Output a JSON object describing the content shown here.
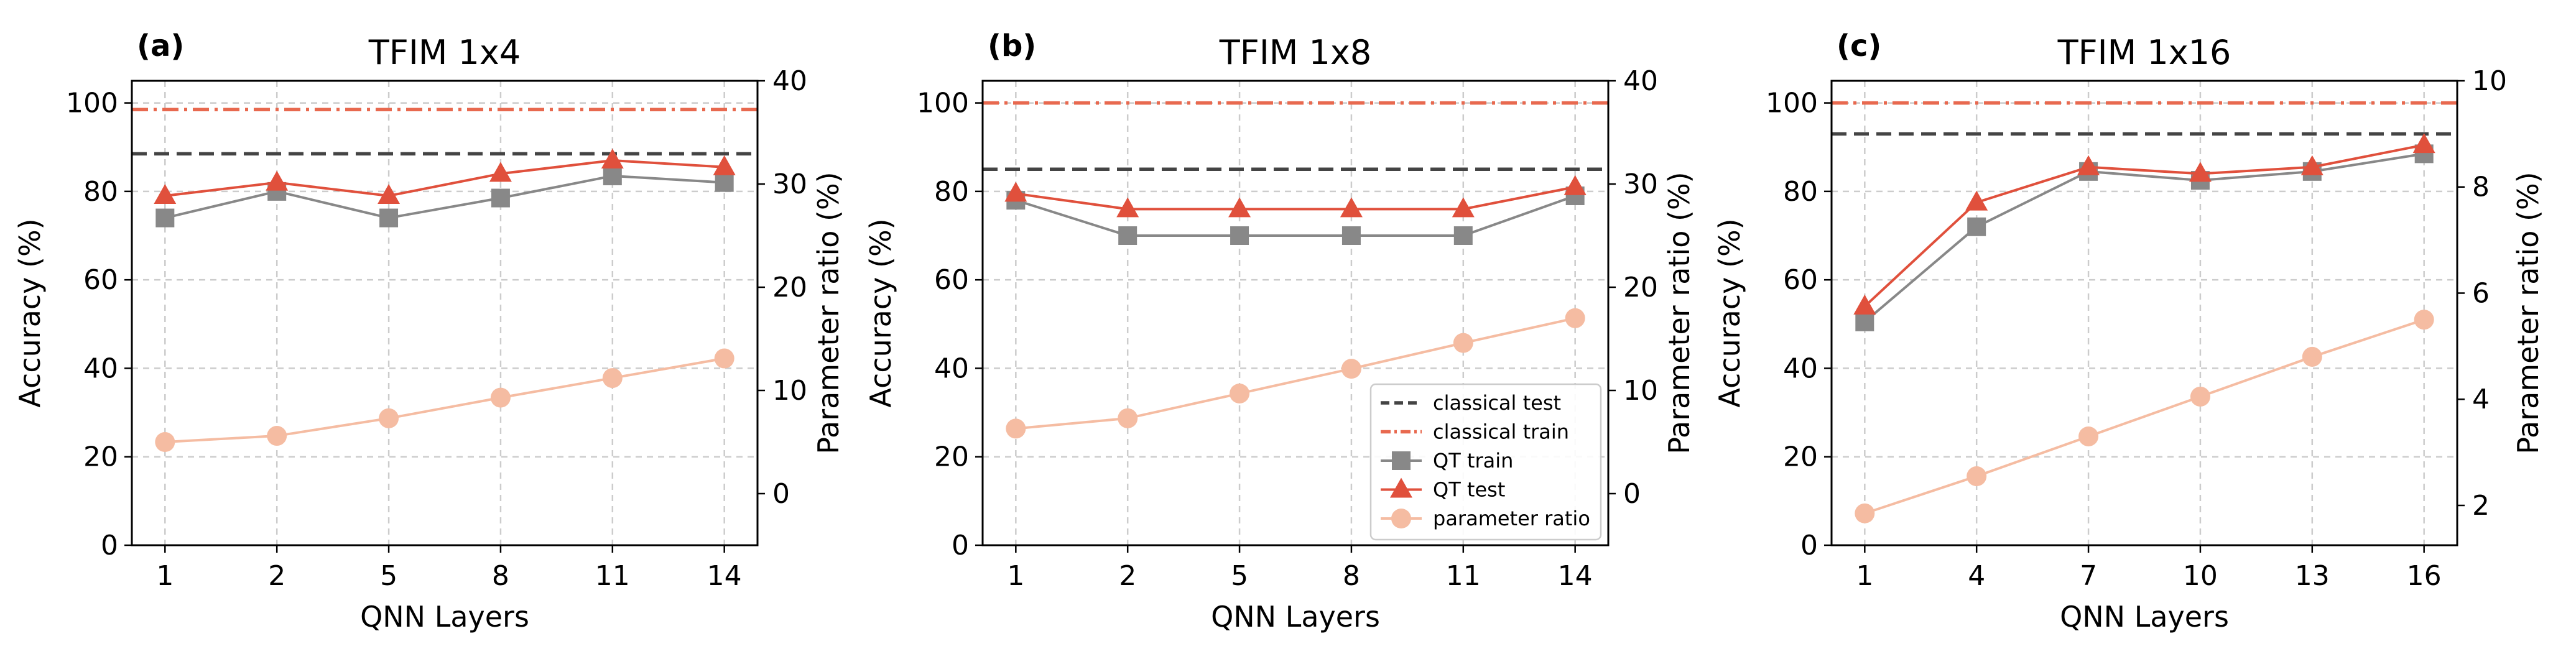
{
  "chart_data": [
    {
      "type": "line",
      "panel_label": "(a)",
      "title": "TFIM 1x4",
      "xlabel": "QNN Layers",
      "ylabel": "Accuracy (%)",
      "ylabel_right": "Parameter ratio (%)",
      "categories": [
        "1",
        "2",
        "5",
        "8",
        "11",
        "14"
      ],
      "ylim": [
        0,
        105
      ],
      "yticks": [
        "0",
        "20",
        "40",
        "60",
        "80",
        "100"
      ],
      "ylim_right": [
        -5,
        40
      ],
      "yticks_right": [
        "0",
        "10",
        "20",
        "30",
        "40"
      ],
      "grid": true,
      "legend": null,
      "hlines": [
        {
          "name": "classical test",
          "value": 88.5,
          "color": "#444444",
          "style": "dashed"
        },
        {
          "name": "classical train",
          "value": 98.5,
          "color": "#e8694f",
          "style": "dashdot"
        }
      ],
      "series": [
        {
          "name": "QT train",
          "axis": "left",
          "marker": "square",
          "color": "#888888",
          "values": [
            74,
            80,
            74,
            78.5,
            83.5,
            82
          ]
        },
        {
          "name": "QT test",
          "axis": "left",
          "marker": "triangle",
          "color": "#e0503c",
          "values": [
            79,
            82,
            79,
            84,
            87,
            85.5
          ]
        },
        {
          "name": "parameter ratio",
          "axis": "right",
          "marker": "circle",
          "color": "#f5bca2",
          "values": [
            5.0,
            5.6,
            7.3,
            9.3,
            11.2,
            13.1
          ]
        }
      ]
    },
    {
      "type": "line",
      "panel_label": "(b)",
      "title": "TFIM 1x8",
      "xlabel": "QNN Layers",
      "ylabel": "Accuracy (%)",
      "ylabel_right": "Parameter ratio (%)",
      "categories": [
        "1",
        "2",
        "5",
        "8",
        "11",
        "14"
      ],
      "ylim": [
        0,
        105
      ],
      "yticks": [
        "0",
        "20",
        "40",
        "60",
        "80",
        "100"
      ],
      "ylim_right": [
        -5,
        40
      ],
      "yticks_right": [
        "0",
        "10",
        "20",
        "30",
        "40"
      ],
      "grid": true,
      "legend": {
        "position": "lower right",
        "entries": [
          "classical test",
          "classical train",
          "QT train",
          "QT test",
          "parameter ratio"
        ]
      },
      "hlines": [
        {
          "name": "classical test",
          "value": 85,
          "color": "#444444",
          "style": "dashed"
        },
        {
          "name": "classical train",
          "value": 100,
          "color": "#e8694f",
          "style": "dashdot"
        }
      ],
      "series": [
        {
          "name": "QT train",
          "axis": "left",
          "marker": "square",
          "color": "#888888",
          "values": [
            78,
            70,
            70,
            70,
            70,
            79
          ]
        },
        {
          "name": "QT test",
          "axis": "left",
          "marker": "triangle",
          "color": "#e0503c",
          "values": [
            79.5,
            76,
            76,
            76,
            76,
            81
          ]
        },
        {
          "name": "parameter ratio",
          "axis": "right",
          "marker": "circle",
          "color": "#f5bca2",
          "values": [
            6.3,
            7.3,
            9.7,
            12.1,
            14.6,
            17.0
          ]
        }
      ]
    },
    {
      "type": "line",
      "panel_label": "(c)",
      "title": "TFIM 1x16",
      "xlabel": "QNN Layers",
      "ylabel": "Accuracy (%)",
      "ylabel_right": "Parameter ratio (%)",
      "categories": [
        "1",
        "4",
        "7",
        "10",
        "13",
        "16"
      ],
      "ylim": [
        0,
        105
      ],
      "yticks": [
        "0",
        "20",
        "40",
        "60",
        "80",
        "100"
      ],
      "ylim_right": [
        1.25,
        10
      ],
      "yticks_right": [
        "2",
        "4",
        "6",
        "8",
        "10"
      ],
      "grid": true,
      "legend": null,
      "hlines": [
        {
          "name": "classical test",
          "value": 93,
          "color": "#444444",
          "style": "dashed"
        },
        {
          "name": "classical train",
          "value": 100,
          "color": "#e8694f",
          "style": "dashdot"
        }
      ],
      "series": [
        {
          "name": "QT train",
          "axis": "left",
          "marker": "square",
          "color": "#888888",
          "values": [
            50.5,
            72,
            84.5,
            82.5,
            84.5,
            88.5
          ]
        },
        {
          "name": "QT test",
          "axis": "left",
          "marker": "triangle",
          "color": "#e0503c",
          "values": [
            54,
            77.5,
            85.5,
            84,
            85.5,
            90.5
          ]
        },
        {
          "name": "parameter ratio",
          "axis": "right",
          "marker": "circle",
          "color": "#f5bca2",
          "values": [
            1.85,
            2.55,
            3.3,
            4.05,
            4.8,
            5.5
          ]
        }
      ]
    }
  ]
}
